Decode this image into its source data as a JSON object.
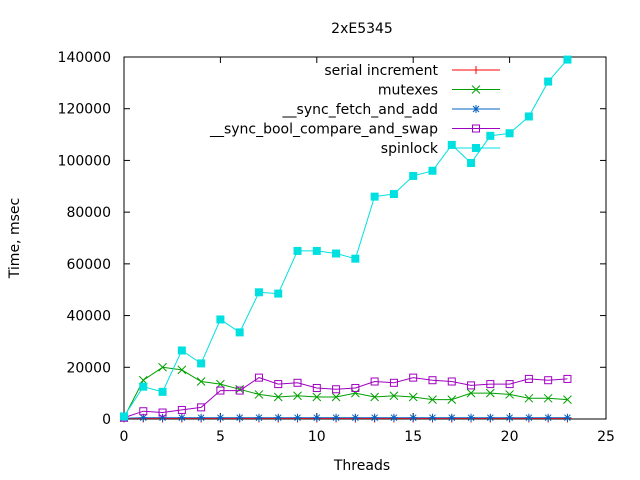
{
  "chart_data": {
    "type": "line",
    "title": "2xE5345",
    "xlabel": "Threads",
    "ylabel": "Time, msec",
    "xlim": [
      0,
      25
    ],
    "ylim": [
      0,
      140000
    ],
    "xticks": [
      0,
      5,
      10,
      15,
      20,
      25
    ],
    "yticks": [
      0,
      20000,
      40000,
      60000,
      80000,
      100000,
      120000,
      140000
    ],
    "legend_position": "top-right",
    "grid": false,
    "x": [
      0,
      1,
      2,
      3,
      4,
      5,
      6,
      7,
      8,
      9,
      10,
      11,
      12,
      13,
      14,
      15,
      16,
      17,
      18,
      19,
      20,
      21,
      22,
      23
    ],
    "series": [
      {
        "name": "serial increment",
        "color": "#ff0000",
        "marker": "plus",
        "values": [
          200,
          200,
          200,
          200,
          200,
          200,
          200,
          200,
          200,
          200,
          200,
          200,
          200,
          200,
          200,
          200,
          200,
          200,
          200,
          200,
          200,
          200,
          200,
          200
        ]
      },
      {
        "name": "mutexes",
        "color": "#00a000",
        "marker": "cross",
        "values": [
          500,
          15000,
          20000,
          19000,
          14500,
          13500,
          11500,
          9500,
          8500,
          9000,
          8500,
          8500,
          10000,
          8500,
          9000,
          8500,
          7500,
          7500,
          10000,
          10000,
          9500,
          8000,
          8000,
          7500
        ]
      },
      {
        "name": "__sync_fetch_and_add",
        "color": "#0060c0",
        "marker": "star",
        "values": [
          300,
          500,
          500,
          500,
          500,
          500,
          500,
          500,
          500,
          500,
          500,
          500,
          500,
          500,
          500,
          500,
          500,
          500,
          500,
          500,
          500,
          500,
          500,
          500
        ]
      },
      {
        "name": "__sync_bool_compare_and_swap",
        "color": "#a000c0",
        "marker": "square-open",
        "values": [
          500,
          3000,
          2500,
          3500,
          4500,
          11000,
          11000,
          16000,
          13500,
          14000,
          12000,
          11500,
          12000,
          14500,
          14000,
          16000,
          15000,
          14500,
          13000,
          13500,
          13500,
          15500,
          15000,
          15500
        ]
      },
      {
        "name": "spinlock",
        "color": "#00e0e0",
        "marker": "square-filled",
        "values": [
          1000,
          12500,
          10500,
          26500,
          21500,
          38500,
          33500,
          49000,
          48500,
          65000,
          65000,
          64000,
          62000,
          86000,
          87000,
          94000,
          96000,
          106000,
          99000,
          109500,
          110500,
          117000,
          130500,
          139000
        ]
      }
    ]
  }
}
